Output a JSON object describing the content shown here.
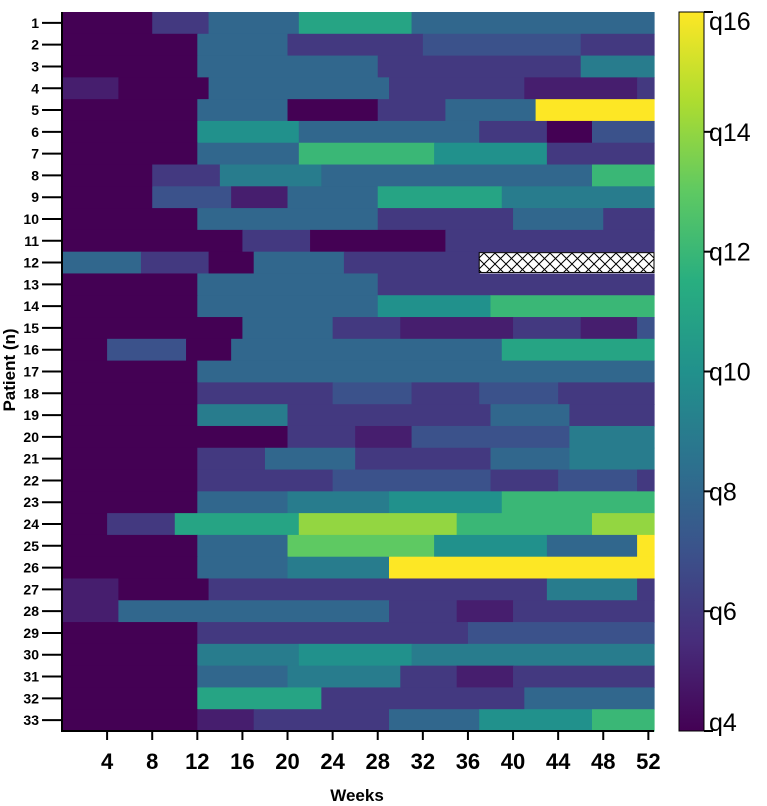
{
  "chart_data": {
    "type": "heatmap",
    "title": "",
    "xlabel": "Weeks",
    "ylabel": "Patient (n)",
    "x_ticks": [
      "4",
      "8",
      "12",
      "16",
      "20",
      "24",
      "28",
      "32",
      "36",
      "40",
      "44",
      "48",
      "52"
    ],
    "x_tick_values": [
      4,
      8,
      12,
      16,
      20,
      24,
      28,
      32,
      36,
      40,
      44,
      48,
      52
    ],
    "xlim": [
      0,
      52.5
    ],
    "y_categories": [
      "1",
      "2",
      "3",
      "4",
      "5",
      "6",
      "7",
      "8",
      "9",
      "10",
      "11",
      "12",
      "13",
      "14",
      "15",
      "16",
      "17",
      "18",
      "19",
      "20",
      "21",
      "22",
      "23",
      "24",
      "25",
      "26",
      "27",
      "28",
      "29",
      "30",
      "31",
      "32",
      "33"
    ],
    "colorbar": {
      "ticks": [
        "q4",
        "q6",
        "q8",
        "q10",
        "q12",
        "q14",
        "q16"
      ],
      "tick_values": [
        4,
        6,
        8,
        10,
        12,
        14,
        16
      ],
      "range": [
        4,
        16
      ],
      "colormap": "viridis"
    },
    "missing_pattern": "crosshatch",
    "rows": [
      {
        "patient": "1",
        "segments": [
          [
            0,
            8,
            4
          ],
          [
            8,
            13,
            6
          ],
          [
            13,
            21,
            8
          ],
          [
            21,
            31,
            11
          ],
          [
            31,
            52.5,
            8
          ]
        ]
      },
      {
        "patient": "2",
        "segments": [
          [
            0,
            12,
            4
          ],
          [
            12,
            20,
            8
          ],
          [
            20,
            32,
            6
          ],
          [
            32,
            46,
            7
          ],
          [
            46,
            52.5,
            6
          ]
        ]
      },
      {
        "patient": "3",
        "segments": [
          [
            0,
            12,
            4
          ],
          [
            12,
            28,
            8
          ],
          [
            28,
            46,
            6
          ],
          [
            46,
            52.5,
            9
          ]
        ]
      },
      {
        "patient": "4",
        "segments": [
          [
            0,
            5,
            5
          ],
          [
            5,
            13,
            4
          ],
          [
            13,
            29,
            8
          ],
          [
            29,
            41,
            6
          ],
          [
            41,
            51,
            5
          ],
          [
            51,
            52.5,
            6
          ]
        ]
      },
      {
        "patient": "5",
        "segments": [
          [
            0,
            12,
            4
          ],
          [
            12,
            20,
            8
          ],
          [
            20,
            28,
            4
          ],
          [
            28,
            34,
            6
          ],
          [
            34,
            42,
            8
          ],
          [
            42,
            52.5,
            16
          ]
        ]
      },
      {
        "patient": "6",
        "segments": [
          [
            0,
            12,
            4
          ],
          [
            12,
            21,
            10
          ],
          [
            21,
            37,
            8
          ],
          [
            37,
            43,
            6
          ],
          [
            43,
            47,
            4
          ],
          [
            47,
            52.5,
            7
          ]
        ]
      },
      {
        "patient": "7",
        "segments": [
          [
            0,
            12,
            4
          ],
          [
            12,
            21,
            8
          ],
          [
            21,
            33,
            12
          ],
          [
            33,
            43,
            10
          ],
          [
            43,
            52.5,
            6
          ]
        ]
      },
      {
        "patient": "8",
        "segments": [
          [
            0,
            8,
            4
          ],
          [
            8,
            14,
            6
          ],
          [
            14,
            23,
            9
          ],
          [
            23,
            47,
            8
          ],
          [
            47,
            52.5,
            12
          ]
        ]
      },
      {
        "patient": "9",
        "segments": [
          [
            0,
            8,
            4
          ],
          [
            8,
            15,
            7
          ],
          [
            15,
            20,
            5
          ],
          [
            20,
            28,
            8
          ],
          [
            28,
            39,
            11
          ],
          [
            39,
            52.5,
            9
          ]
        ]
      },
      {
        "patient": "10",
        "segments": [
          [
            0,
            12,
            4
          ],
          [
            12,
            28,
            8
          ],
          [
            28,
            40,
            6
          ],
          [
            40,
            48,
            8
          ],
          [
            48,
            52.5,
            6
          ]
        ]
      },
      {
        "patient": "11",
        "segments": [
          [
            0,
            16,
            4
          ],
          [
            16,
            22,
            6
          ],
          [
            22,
            34,
            4
          ],
          [
            34,
            52.5,
            6
          ]
        ]
      },
      {
        "patient": "12",
        "segments": [
          [
            0,
            7,
            8
          ],
          [
            7,
            13,
            6
          ],
          [
            13,
            17,
            4
          ],
          [
            17,
            25,
            8
          ],
          [
            25,
            37,
            6
          ]
        ],
        "missing": [
          37,
          52.5
        ]
      },
      {
        "patient": "13",
        "segments": [
          [
            0,
            12,
            4
          ],
          [
            12,
            28,
            8
          ],
          [
            28,
            52.5,
            6
          ]
        ]
      },
      {
        "patient": "14",
        "segments": [
          [
            0,
            12,
            4
          ],
          [
            12,
            28,
            8
          ],
          [
            28,
            38,
            10
          ],
          [
            38,
            52.5,
            12
          ]
        ]
      },
      {
        "patient": "15",
        "segments": [
          [
            0,
            16,
            4
          ],
          [
            16,
            24,
            8
          ],
          [
            24,
            30,
            6
          ],
          [
            30,
            40,
            5
          ],
          [
            40,
            46,
            6
          ],
          [
            46,
            51,
            5
          ],
          [
            51,
            52.5,
            7
          ]
        ]
      },
      {
        "patient": "16",
        "segments": [
          [
            0,
            4,
            4
          ],
          [
            4,
            11,
            7
          ],
          [
            11,
            15,
            4
          ],
          [
            15,
            39,
            8
          ],
          [
            39,
            52.5,
            11
          ]
        ]
      },
      {
        "patient": "17",
        "segments": [
          [
            0,
            12,
            4
          ],
          [
            12,
            52.5,
            8
          ]
        ]
      },
      {
        "patient": "18",
        "segments": [
          [
            0,
            12,
            4
          ],
          [
            12,
            24,
            6
          ],
          [
            24,
            31,
            7
          ],
          [
            31,
            37,
            6
          ],
          [
            37,
            44,
            7
          ],
          [
            44,
            52.5,
            6
          ]
        ]
      },
      {
        "patient": "19",
        "segments": [
          [
            0,
            12,
            4
          ],
          [
            12,
            20,
            9
          ],
          [
            20,
            38,
            6
          ],
          [
            38,
            45,
            8
          ],
          [
            45,
            52.5,
            6
          ]
        ]
      },
      {
        "patient": "20",
        "segments": [
          [
            0,
            20,
            4
          ],
          [
            20,
            26,
            6
          ],
          [
            26,
            31,
            5
          ],
          [
            31,
            45,
            7
          ],
          [
            45,
            52.5,
            9
          ]
        ]
      },
      {
        "patient": "21",
        "segments": [
          [
            0,
            12,
            4
          ],
          [
            12,
            18,
            6
          ],
          [
            18,
            26,
            8
          ],
          [
            26,
            38,
            6
          ],
          [
            38,
            45,
            8
          ],
          [
            45,
            52.5,
            9
          ]
        ]
      },
      {
        "patient": "22",
        "segments": [
          [
            0,
            12,
            4
          ],
          [
            12,
            24,
            6
          ],
          [
            24,
            38,
            7
          ],
          [
            38,
            44,
            6
          ],
          [
            44,
            51,
            7
          ],
          [
            51,
            52.5,
            6
          ]
        ]
      },
      {
        "patient": "23",
        "segments": [
          [
            0,
            12,
            4
          ],
          [
            12,
            20,
            8
          ],
          [
            20,
            29,
            9
          ],
          [
            29,
            39,
            10
          ],
          [
            39,
            52.5,
            12
          ]
        ]
      },
      {
        "patient": "24",
        "segments": [
          [
            0,
            4,
            4
          ],
          [
            4,
            10,
            6
          ],
          [
            10,
            21,
            11
          ],
          [
            21,
            35,
            14
          ],
          [
            35,
            47,
            12
          ],
          [
            47,
            52.5,
            14
          ]
        ]
      },
      {
        "patient": "25",
        "segments": [
          [
            0,
            12,
            4
          ],
          [
            12,
            20,
            8
          ],
          [
            20,
            33,
            13
          ],
          [
            33,
            43,
            10
          ],
          [
            43,
            51,
            8
          ],
          [
            51,
            52.5,
            16
          ]
        ]
      },
      {
        "patient": "26",
        "segments": [
          [
            0,
            12,
            4
          ],
          [
            12,
            20,
            8
          ],
          [
            20,
            29,
            9
          ],
          [
            29,
            52.5,
            16
          ]
        ]
      },
      {
        "patient": "27",
        "segments": [
          [
            0,
            5,
            5
          ],
          [
            5,
            13,
            4
          ],
          [
            13,
            43,
            6
          ],
          [
            43,
            51,
            9
          ],
          [
            51,
            52.5,
            6
          ]
        ]
      },
      {
        "patient": "28",
        "segments": [
          [
            0,
            5,
            5
          ],
          [
            5,
            29,
            8
          ],
          [
            29,
            35,
            6
          ],
          [
            35,
            40,
            5
          ],
          [
            40,
            52.5,
            6
          ]
        ]
      },
      {
        "patient": "29",
        "segments": [
          [
            0,
            12,
            4
          ],
          [
            12,
            36,
            6
          ],
          [
            36,
            52.5,
            7
          ]
        ]
      },
      {
        "patient": "30",
        "segments": [
          [
            0,
            12,
            4
          ],
          [
            12,
            21,
            9
          ],
          [
            21,
            31,
            10
          ],
          [
            31,
            52.5,
            9
          ]
        ]
      },
      {
        "patient": "31",
        "segments": [
          [
            0,
            12,
            4
          ],
          [
            12,
            20,
            8
          ],
          [
            20,
            30,
            9
          ],
          [
            30,
            35,
            6
          ],
          [
            35,
            40,
            5
          ],
          [
            40,
            52.5,
            6
          ]
        ]
      },
      {
        "patient": "32",
        "segments": [
          [
            0,
            12,
            4
          ],
          [
            12,
            23,
            11
          ],
          [
            23,
            41,
            6
          ],
          [
            41,
            52.5,
            8
          ]
        ]
      },
      {
        "patient": "33",
        "segments": [
          [
            0,
            12,
            4
          ],
          [
            12,
            17,
            5
          ],
          [
            17,
            29,
            6
          ],
          [
            29,
            37,
            8
          ],
          [
            37,
            47,
            10
          ],
          [
            47,
            52.5,
            12
          ]
        ]
      }
    ]
  }
}
